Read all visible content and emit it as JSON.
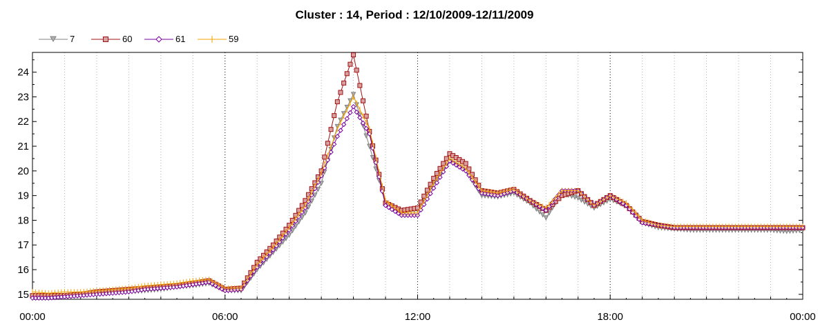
{
  "chart_data": {
    "type": "line",
    "title": "Cluster : 14, Period : 12/10/2009-12/11/2009",
    "xlabel": "",
    "ylabel": "",
    "x_ticks": [
      "00:00",
      "06:00",
      "12:00",
      "18:00",
      "00:00"
    ],
    "x_tick_hours": [
      0,
      6,
      12,
      18,
      24
    ],
    "y_ticks": [
      15,
      16,
      17,
      18,
      19,
      20,
      21,
      22,
      23,
      24
    ],
    "xlim_hours": [
      0,
      24
    ],
    "ylim": [
      14.8,
      24.8
    ],
    "grid": "vertical dotted",
    "legend_position": "top-left",
    "x_hours": [
      0,
      0.5,
      1,
      1.5,
      2,
      2.5,
      3,
      3.5,
      4,
      4.5,
      5,
      5.5,
      6,
      6.5,
      7,
      7.5,
      8,
      8.5,
      9,
      9.5,
      10,
      10.5,
      11,
      11.5,
      12,
      12.5,
      13,
      13.5,
      14,
      14.5,
      15,
      15.5,
      16,
      16.5,
      17,
      17.5,
      18,
      18.5,
      19,
      19.5,
      20,
      20.5,
      21,
      21.5,
      22,
      22.5,
      23,
      23.5,
      24
    ],
    "series": [
      {
        "name": "7",
        "color": "#808080",
        "marker": "triangle-down",
        "values": [
          14.85,
          14.85,
          14.9,
          14.95,
          15.0,
          15.05,
          15.1,
          15.15,
          15.2,
          15.3,
          15.35,
          15.45,
          15.15,
          15.15,
          16.0,
          16.7,
          17.4,
          18.3,
          19.5,
          21.8,
          23.1,
          21.0,
          18.7,
          18.4,
          18.4,
          19.5,
          20.4,
          20.0,
          19.0,
          18.95,
          19.1,
          18.7,
          18.1,
          19.1,
          18.9,
          18.5,
          18.85,
          18.6,
          17.9,
          17.7,
          17.65,
          17.6,
          17.6,
          17.6,
          17.6,
          17.6,
          17.6,
          17.55,
          17.6
        ]
      },
      {
        "name": "60",
        "color": "#a01010",
        "marker": "square",
        "values": [
          14.95,
          14.95,
          14.95,
          15.0,
          15.1,
          15.15,
          15.2,
          15.25,
          15.3,
          15.35,
          15.45,
          15.55,
          15.2,
          15.25,
          16.3,
          17.0,
          17.8,
          18.8,
          20.0,
          22.8,
          24.7,
          21.6,
          18.7,
          18.4,
          18.5,
          19.7,
          20.7,
          20.3,
          19.2,
          19.1,
          19.25,
          18.8,
          18.4,
          19.0,
          19.2,
          18.6,
          19.0,
          18.6,
          17.95,
          17.8,
          17.7,
          17.7,
          17.7,
          17.7,
          17.7,
          17.7,
          17.7,
          17.7,
          17.7
        ]
      },
      {
        "name": "61",
        "color": "#7a00a0",
        "marker": "diamond",
        "values": [
          14.85,
          14.85,
          14.9,
          14.95,
          15.0,
          15.05,
          15.1,
          15.2,
          15.25,
          15.3,
          15.4,
          15.5,
          15.15,
          15.2,
          16.1,
          16.8,
          17.6,
          18.5,
          19.8,
          21.4,
          22.6,
          21.5,
          18.6,
          18.2,
          18.2,
          19.3,
          20.4,
          20.0,
          19.1,
          19.0,
          19.2,
          18.8,
          18.4,
          19.2,
          19.2,
          18.6,
          19.0,
          18.6,
          17.9,
          17.8,
          17.7,
          17.7,
          17.7,
          17.7,
          17.7,
          17.7,
          17.7,
          17.7,
          17.7
        ]
      },
      {
        "name": "59",
        "color": "#f0a000",
        "marker": "plus",
        "values": [
          15.1,
          15.05,
          15.1,
          15.1,
          15.15,
          15.2,
          15.25,
          15.35,
          15.4,
          15.45,
          15.55,
          15.6,
          15.25,
          15.25,
          16.2,
          16.9,
          17.7,
          18.6,
          19.9,
          21.7,
          23.0,
          21.7,
          18.8,
          18.3,
          18.3,
          19.5,
          20.5,
          20.1,
          19.2,
          19.1,
          19.25,
          18.8,
          18.5,
          19.2,
          19.2,
          18.6,
          19.0,
          18.7,
          18.0,
          17.8,
          17.75,
          17.75,
          17.75,
          17.75,
          17.75,
          17.75,
          17.75,
          17.75,
          17.75
        ]
      }
    ]
  }
}
